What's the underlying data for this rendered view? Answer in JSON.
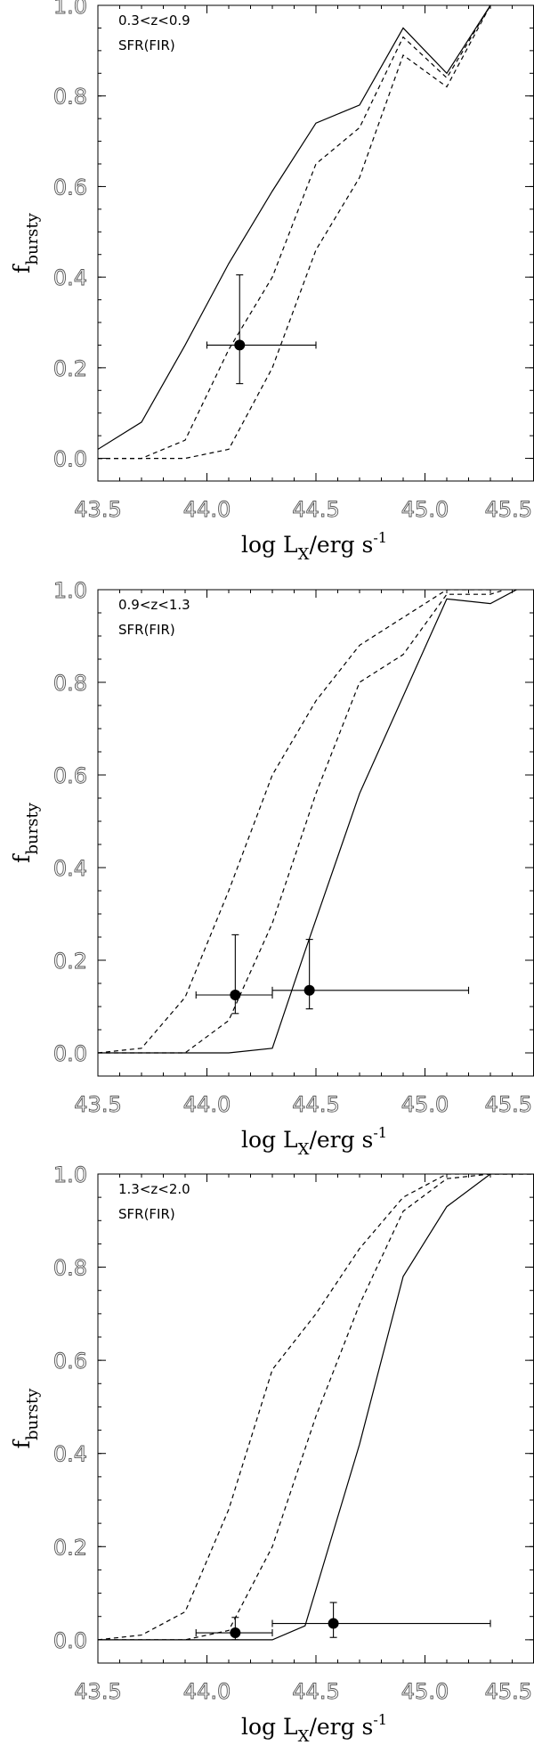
{
  "chart_data": [
    {
      "type": "line",
      "annotation": [
        "0.3<z<0.9",
        "SFR(FIR)"
      ],
      "xlabel": "log L",
      "xlabel_sub": "X",
      "xlabel_unit": "/erg s",
      "xlabel_sup": "-1",
      "ylabel": "f",
      "ylabel_sub": "bursty",
      "xlim": [
        43.5,
        45.5
      ],
      "ylim": [
        -0.05,
        1.0
      ],
      "xticks": [
        43.5,
        44.0,
        44.5,
        45.0,
        45.5
      ],
      "xtick_labels": [
        "43.5",
        "44.0",
        "44.5",
        "45.0",
        "45.5"
      ],
      "yticks": [
        0.0,
        0.2,
        0.4,
        0.6,
        0.8,
        1.0
      ],
      "ytick_labels": [
        "0.0",
        "0.2",
        "0.4",
        "0.6",
        "0.8",
        "1.0"
      ],
      "series": [
        {
          "style": "solid",
          "points": [
            [
              43.5,
              0.02
            ],
            [
              43.7,
              0.08
            ],
            [
              43.9,
              0.25
            ],
            [
              44.1,
              0.43
            ],
            [
              44.3,
              0.59
            ],
            [
              44.5,
              0.74
            ],
            [
              44.7,
              0.78
            ],
            [
              44.9,
              0.95
            ],
            [
              45.1,
              0.85
            ],
            [
              45.3,
              1.0
            ]
          ]
        },
        {
          "style": "dashed",
          "points": [
            [
              43.5,
              0.0
            ],
            [
              43.7,
              0.0
            ],
            [
              43.9,
              0.04
            ],
            [
              44.1,
              0.24
            ],
            [
              44.3,
              0.4
            ],
            [
              44.5,
              0.65
            ],
            [
              44.7,
              0.73
            ],
            [
              44.9,
              0.93
            ],
            [
              45.1,
              0.84
            ],
            [
              45.3,
              1.0
            ]
          ]
        },
        {
          "style": "dashed",
          "points": [
            [
              43.5,
              0.0
            ],
            [
              43.7,
              0.0
            ],
            [
              43.9,
              0.0
            ],
            [
              44.1,
              0.02
            ],
            [
              44.3,
              0.2
            ],
            [
              44.5,
              0.46
            ],
            [
              44.7,
              0.62
            ],
            [
              44.9,
              0.89
            ],
            [
              45.1,
              0.82
            ],
            [
              45.3,
              1.0
            ]
          ]
        }
      ],
      "points": [
        {
          "x": 44.15,
          "y": 0.25,
          "xerr": [
            44.0,
            44.5
          ],
          "yerr": [
            0.165,
            0.405
          ]
        }
      ]
    },
    {
      "type": "line",
      "annotation": [
        "0.9<z<1.3",
        "SFR(FIR)"
      ],
      "xlabel": "log L",
      "xlabel_sub": "X",
      "xlabel_unit": "/erg s",
      "xlabel_sup": "-1",
      "ylabel": "f",
      "ylabel_sub": "bursty",
      "xlim": [
        43.5,
        45.5
      ],
      "ylim": [
        -0.05,
        1.0
      ],
      "xticks": [
        43.5,
        44.0,
        44.5,
        45.0,
        45.5
      ],
      "xtick_labels": [
        "43.5",
        "44.0",
        "44.5",
        "45.0",
        "45.5"
      ],
      "yticks": [
        0.0,
        0.2,
        0.4,
        0.6,
        0.8,
        1.0
      ],
      "ytick_labels": [
        "0.0",
        "0.2",
        "0.4",
        "0.6",
        "0.8",
        "1.0"
      ],
      "series": [
        {
          "style": "solid",
          "points": [
            [
              43.5,
              0.0
            ],
            [
              43.7,
              0.0
            ],
            [
              43.9,
              0.0
            ],
            [
              44.1,
              0.0
            ],
            [
              44.3,
              0.01
            ],
            [
              44.45,
              0.22
            ],
            [
              44.7,
              0.56
            ],
            [
              44.9,
              0.77
            ],
            [
              45.1,
              0.98
            ],
            [
              45.3,
              0.97
            ],
            [
              45.5,
              1.02
            ]
          ]
        },
        {
          "style": "dashed",
          "points": [
            [
              43.5,
              0.0
            ],
            [
              43.7,
              0.0
            ],
            [
              43.9,
              0.0
            ],
            [
              44.1,
              0.07
            ],
            [
              44.3,
              0.28
            ],
            [
              44.5,
              0.56
            ],
            [
              44.7,
              0.8
            ],
            [
              44.9,
              0.86
            ],
            [
              45.1,
              0.99
            ],
            [
              45.3,
              0.99
            ],
            [
              45.5,
              1.02
            ]
          ]
        },
        {
          "style": "dashed",
          "points": [
            [
              43.5,
              0.0
            ],
            [
              43.7,
              0.01
            ],
            [
              43.9,
              0.12
            ],
            [
              44.1,
              0.35
            ],
            [
              44.3,
              0.6
            ],
            [
              44.5,
              0.76
            ],
            [
              44.7,
              0.88
            ],
            [
              44.9,
              0.94
            ],
            [
              45.1,
              1.0
            ],
            [
              45.3,
              1.0
            ],
            [
              45.5,
              1.02
            ]
          ]
        }
      ],
      "points": [
        {
          "x": 44.13,
          "y": 0.125,
          "xerr": [
            43.95,
            44.3
          ],
          "yerr": [
            0.085,
            0.255
          ]
        },
        {
          "x": 44.47,
          "y": 0.135,
          "xerr": [
            44.3,
            45.2
          ],
          "yerr": [
            0.095,
            0.245
          ]
        }
      ]
    },
    {
      "type": "line",
      "annotation": [
        "1.3<z<2.0",
        "SFR(FIR)"
      ],
      "xlabel": "log L",
      "xlabel_sub": "X",
      "xlabel_unit": "/erg s",
      "xlabel_sup": "-1",
      "ylabel": "f",
      "ylabel_sub": "bursty",
      "xlim": [
        43.5,
        45.5
      ],
      "ylim": [
        -0.05,
        1.0
      ],
      "xticks": [
        43.5,
        44.0,
        44.5,
        45.0,
        45.5
      ],
      "xtick_labels": [
        "43.5",
        "44.0",
        "44.5",
        "45.0",
        "45.5"
      ],
      "yticks": [
        0.0,
        0.2,
        0.4,
        0.6,
        0.8,
        1.0
      ],
      "ytick_labels": [
        "0.0",
        "0.2",
        "0.4",
        "0.6",
        "0.8",
        "1.0"
      ],
      "series": [
        {
          "style": "solid",
          "points": [
            [
              43.5,
              0.0
            ],
            [
              43.7,
              0.0
            ],
            [
              43.9,
              0.0
            ],
            [
              44.1,
              0.0
            ],
            [
              44.3,
              0.0
            ],
            [
              44.45,
              0.03
            ],
            [
              44.7,
              0.42
            ],
            [
              44.9,
              0.78
            ],
            [
              45.1,
              0.93
            ],
            [
              45.3,
              1.0
            ],
            [
              45.5,
              1.0
            ]
          ]
        },
        {
          "style": "dashed",
          "points": [
            [
              43.5,
              0.0
            ],
            [
              43.7,
              0.0
            ],
            [
              43.9,
              0.0
            ],
            [
              44.1,
              0.02
            ],
            [
              44.3,
              0.2
            ],
            [
              44.5,
              0.48
            ],
            [
              44.7,
              0.72
            ],
            [
              44.9,
              0.92
            ],
            [
              45.1,
              0.99
            ],
            [
              45.3,
              1.0
            ],
            [
              45.5,
              1.0
            ]
          ]
        },
        {
          "style": "dashed",
          "points": [
            [
              43.5,
              0.0
            ],
            [
              43.7,
              0.01
            ],
            [
              43.9,
              0.06
            ],
            [
              44.1,
              0.28
            ],
            [
              44.3,
              0.58
            ],
            [
              44.5,
              0.7
            ],
            [
              44.7,
              0.84
            ],
            [
              44.9,
              0.95
            ],
            [
              45.1,
              1.0
            ],
            [
              45.3,
              1.0
            ],
            [
              45.5,
              1.0
            ]
          ]
        }
      ],
      "points": [
        {
          "x": 44.13,
          "y": 0.015,
          "xerr": [
            43.95,
            44.3
          ],
          "yerr": [
            0.0,
            0.048
          ]
        },
        {
          "x": 44.58,
          "y": 0.035,
          "xerr": [
            44.3,
            45.3
          ],
          "yerr": [
            0.005,
            0.08
          ]
        }
      ]
    }
  ]
}
